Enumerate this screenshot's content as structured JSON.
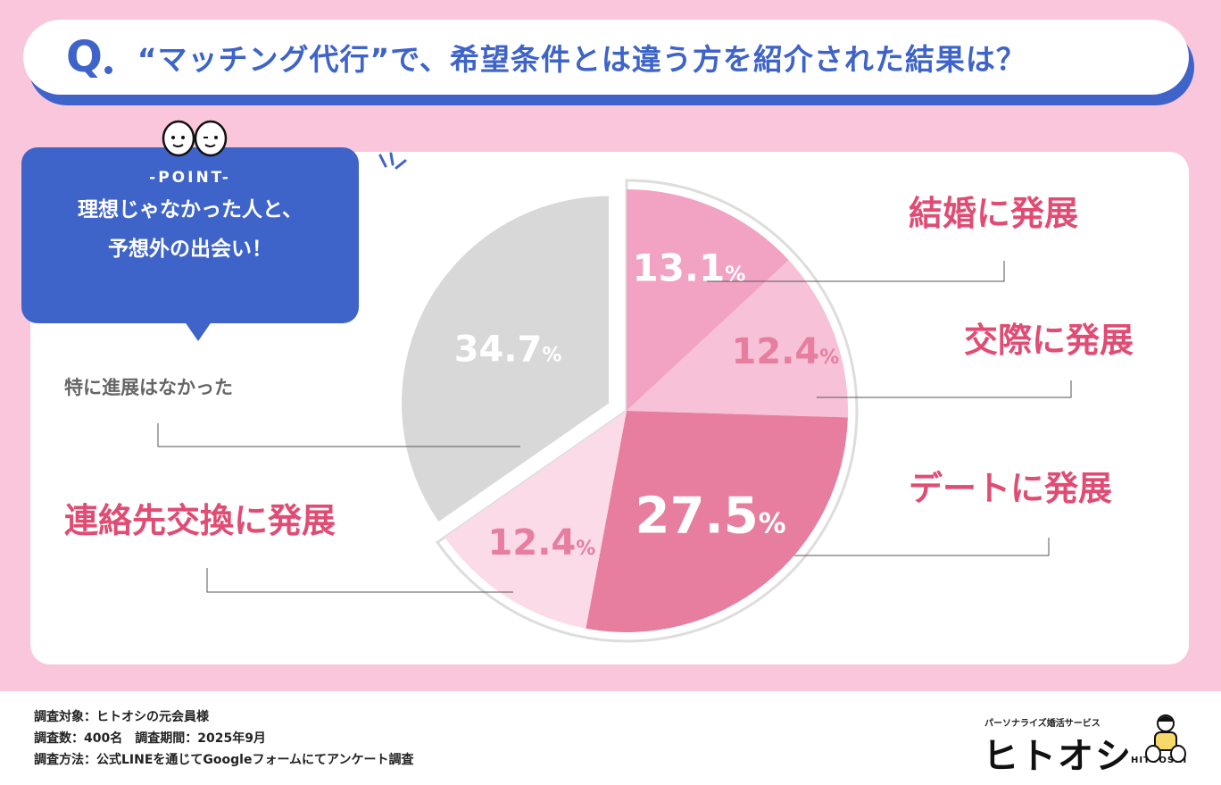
{
  "question": {
    "mark": "Q",
    "text": "“マッチング代行”で、希望条件とは違う方を紹介された結果は？"
  },
  "point_box": {
    "label": "-POINT-",
    "line1": "理想じゃなかった人と、",
    "line2": "予想外の出会い！"
  },
  "colors": {
    "background": "#f9c6dc",
    "accent_blue": "#3e63c9",
    "label_red": "#e04c73",
    "slice_marriage": "#f2a2c2",
    "slice_dating": "#f7c2d7",
    "slice_date": "#e77e9f",
    "slice_contact": "#fbdbe8",
    "slice_none": "#d8d8d8"
  },
  "chart_data": {
    "type": "pie",
    "unit": "%",
    "slices": [
      {
        "label": "結婚に発展",
        "value": 13.1,
        "value_text": "13.1"
      },
      {
        "label": "交際に発展",
        "value": 12.4,
        "value_text": "12.4"
      },
      {
        "label": "デートに発展",
        "value": 27.5,
        "value_text": "27.5"
      },
      {
        "label": "連絡先交換に発展",
        "value": 12.4,
        "value_text": "12.4"
      },
      {
        "label": "特に進展はなかった",
        "value": 34.7,
        "value_text": "34.7"
      }
    ],
    "exploded": [
      "結婚に発展",
      "交際に発展",
      "デートに発展",
      "連絡先交換に発展"
    ]
  },
  "footer": {
    "line1": "調査対象：ヒトオシの元会員様",
    "line2": "調査数：400名　調査期間：2025年9月",
    "line3": "調査方法：公式LINEを通じてGoogleフォームにてアンケート調査",
    "brand_tagline": "パーソナライズ婚活サービス",
    "brand_name": "ヒトオシ",
    "brand_en": "HITOOSHI"
  },
  "icons": [
    "two-faces-icon",
    "sparkle-lines-icon",
    "brand-character-icon"
  ]
}
